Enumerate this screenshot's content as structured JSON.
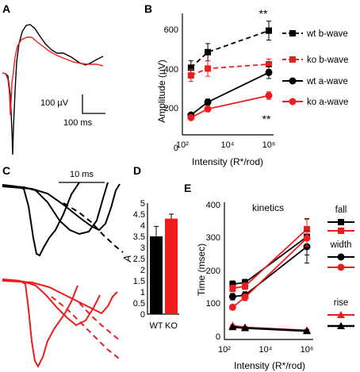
{
  "panels": {
    "A": {
      "label": "A",
      "scalebar": {
        "y_text": "100 µV",
        "x_text": "100 ms"
      },
      "traces": [
        {
          "name": "wt",
          "color": "#000000"
        },
        {
          "name": "ko",
          "color": "#ee1c1c"
        }
      ]
    },
    "B": {
      "label": "B",
      "chart_data": {
        "type": "line",
        "xlabel": "Intensity (R*/rod)",
        "ylabel": "Amplitude (µV)",
        "xscale": "log",
        "xlim": [
          100,
          1000000
        ],
        "xticks": [
          "10²",
          "10⁴",
          "10⁶"
        ],
        "ylim": [
          0,
          700
        ],
        "yticks": [
          0,
          200,
          400,
          600
        ],
        "x": [
          250,
          1500,
          1000000
        ],
        "series": [
          {
            "name": "wt b-wave",
            "color": "#000000",
            "dashed": true,
            "marker": "square",
            "values": [
              390,
              480,
              605
            ],
            "errors": [
              40,
              50,
              55
            ]
          },
          {
            "name": "ko b-wave",
            "color": "#ee1c1c",
            "dashed": true,
            "marker": "square",
            "values": [
              345,
              385,
              410
            ],
            "errors": [
              35,
              45,
              30
            ]
          },
          {
            "name": "wt a-wave",
            "color": "#000000",
            "dashed": false,
            "marker": "circle",
            "values": [
              115,
              190,
              362
            ],
            "errors": [
              10,
              18,
              35
            ]
          },
          {
            "name": "ko a-wave",
            "color": "#ee1c1c",
            "dashed": false,
            "marker": "circle",
            "values": [
              100,
              150,
              228
            ],
            "errors": [
              8,
              15,
              22
            ]
          }
        ],
        "annotations": [
          "**",
          "**"
        ],
        "legend": "right"
      }
    },
    "C": {
      "label": "C",
      "scalebar": {
        "x_text": "10 ms"
      }
    },
    "D": {
      "label": "D",
      "chart_data": {
        "type": "bar",
        "ylabel": "A",
        "categories": [
          "WT",
          "KO"
        ],
        "values": [
          3.5,
          4.3
        ],
        "errors": [
          0.45,
          0.2
        ],
        "colors": [
          "#000000",
          "#ee1c1c"
        ],
        "ylim": [
          0,
          5
        ],
        "yticks": [
          0,
          0.5,
          1,
          1.5,
          2,
          2.5,
          3,
          3.5,
          4,
          4.5,
          5
        ]
      }
    },
    "E": {
      "label": "E",
      "chart_data": {
        "type": "line",
        "title": "kinetics",
        "xlabel": "Intensity (R*/rod)",
        "ylabel": "Time (msec)",
        "xscale": "log",
        "xlim": [
          100,
          1000000
        ],
        "xticks": [
          "10²",
          "10⁴",
          "10⁶"
        ],
        "ylim": [
          0,
          400
        ],
        "yticks": [
          0,
          100,
          200,
          300,
          400
        ],
        "x": [
          250,
          1000,
          1000000
        ],
        "series": [
          {
            "name": "fall",
            "color": "#000000",
            "marker": "square",
            "values": [
              168,
              173,
              312
            ],
            "errors": [
              10,
              10,
              55
            ]
          },
          {
            "name": "fall",
            "color": "#ee1c1c",
            "marker": "square",
            "values": [
              155,
              162,
              335
            ],
            "errors": [
              10,
              10,
              30
            ]
          },
          {
            "name": "width",
            "color": "#000000",
            "marker": "circle",
            "values": [
              130,
              135,
              282
            ],
            "errors": [
              10,
              10,
              50
            ]
          },
          {
            "name": "width",
            "color": "#ee1c1c",
            "marker": "circle",
            "values": [
              98,
              128,
              308
            ],
            "errors": [
              8,
              10,
              25
            ]
          },
          {
            "name": "rise",
            "color": "#ee1c1c",
            "marker": "triangle",
            "values": [
              42,
              37,
              28
            ],
            "errors": [
              3,
              3,
              3
            ]
          },
          {
            "name": "rise",
            "color": "#000000",
            "marker": "triangle",
            "values": [
              38,
              35,
              26
            ],
            "errors": [
              3,
              3,
              3
            ]
          }
        ],
        "legend": [
          "fall",
          "width",
          "rise"
        ]
      }
    }
  }
}
